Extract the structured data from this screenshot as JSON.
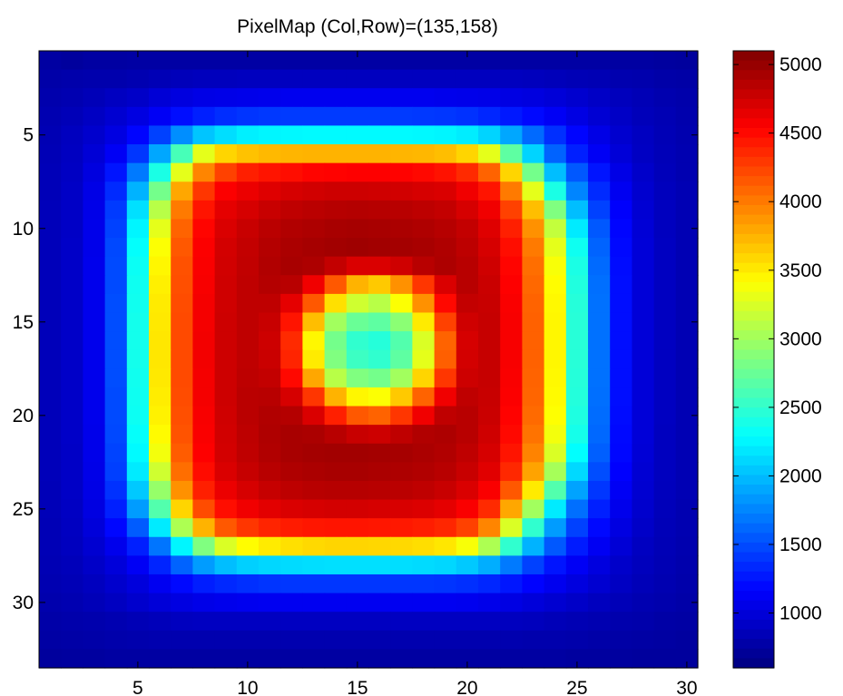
{
  "chart_data": {
    "type": "heatmap",
    "title": "PixelMap (Col,Row)=(135,158)",
    "xlabel": "",
    "ylabel": "",
    "columns": 30,
    "rows": 33,
    "xlim": [
      0.5,
      30.5
    ],
    "ylim": [
      33.5,
      0.5
    ],
    "y_direction": "reverse",
    "xticks": [
      5,
      10,
      15,
      20,
      25,
      30
    ],
    "yticks": [
      5,
      10,
      15,
      20,
      25,
      30
    ],
    "colormap": "jet",
    "colorbar": {
      "location": "right",
      "clim": [
        600,
        5100
      ],
      "ticks": [
        1000,
        1500,
        2000,
        2500,
        3000,
        3500,
        4000,
        4500,
        5000
      ]
    },
    "values_rows_top_to_bottom": [
      [
        750,
        730,
        750,
        750,
        760,
        760,
        760,
        760,
        760,
        760,
        760,
        760,
        760,
        760,
        760,
        760,
        760,
        760,
        760,
        760,
        760,
        760,
        760,
        760,
        760,
        760,
        750,
        750,
        740,
        730
      ],
      [
        780,
        790,
        800,
        800,
        820,
        840,
        860,
        870,
        870,
        880,
        880,
        880,
        880,
        880,
        880,
        880,
        880,
        880,
        880,
        880,
        880,
        880,
        870,
        860,
        840,
        830,
        810,
        800,
        780,
        770
      ],
      [
        800,
        820,
        850,
        890,
        920,
        980,
        1020,
        1050,
        1060,
        1070,
        1080,
        1090,
        1090,
        1090,
        1090,
        1090,
        1090,
        1090,
        1080,
        1070,
        1060,
        1040,
        1020,
        990,
        950,
        910,
        870,
        840,
        810,
        790
      ],
      [
        820,
        850,
        900,
        960,
        1030,
        1120,
        1220,
        1300,
        1360,
        1390,
        1410,
        1420,
        1420,
        1420,
        1420,
        1420,
        1420,
        1410,
        1400,
        1380,
        1330,
        1270,
        1200,
        1120,
        1040,
        970,
        910,
        860,
        830,
        800
      ],
      [
        830,
        880,
        940,
        1030,
        1180,
        1450,
        1790,
        2030,
        2140,
        2220,
        2250,
        2260,
        2270,
        2270,
        2270,
        2270,
        2270,
        2260,
        2250,
        2210,
        2100,
        1900,
        1630,
        1370,
        1180,
        1050,
        950,
        890,
        840,
        810
      ],
      [
        840,
        890,
        980,
        1120,
        1400,
        1900,
        2600,
        3300,
        3600,
        3680,
        3720,
        3740,
        3750,
        3750,
        3750,
        3750,
        3740,
        3730,
        3700,
        3600,
        3300,
        2700,
        2100,
        1600,
        1300,
        1120,
        990,
        900,
        850,
        820
      ],
      [
        850,
        900,
        1020,
        1250,
        1700,
        2400,
        3300,
        3950,
        4250,
        4400,
        4450,
        4480,
        4520,
        4530,
        4540,
        4540,
        4530,
        4500,
        4460,
        4350,
        4100,
        3600,
        2800,
        2000,
        1550,
        1250,
        1050,
        930,
        860,
        820
      ],
      [
        850,
        910,
        1050,
        1350,
        1950,
        2800,
        3800,
        4300,
        4550,
        4620,
        4680,
        4720,
        4740,
        4760,
        4760,
        4750,
        4740,
        4720,
        4700,
        4600,
        4450,
        4000,
        3300,
        2400,
        1750,
        1350,
        1100,
        950,
        870,
        830
      ],
      [
        860,
        910,
        1060,
        1420,
        2150,
        3100,
        4000,
        4450,
        4650,
        4720,
        4780,
        4820,
        4840,
        4860,
        4870,
        4860,
        4850,
        4830,
        4800,
        4720,
        4600,
        4250,
        3700,
        2850,
        2000,
        1450,
        1150,
        970,
        880,
        830
      ],
      [
        860,
        910,
        1070,
        1450,
        2250,
        3300,
        4100,
        4520,
        4700,
        4780,
        4840,
        4880,
        4900,
        4920,
        4930,
        4920,
        4910,
        4890,
        4860,
        4800,
        4680,
        4400,
        3900,
        3150,
        2200,
        1550,
        1180,
        980,
        880,
        830
      ],
      [
        860,
        920,
        1070,
        1480,
        2300,
        3400,
        4150,
        4550,
        4730,
        4800,
        4870,
        4910,
        4930,
        4950,
        4960,
        4950,
        4940,
        4920,
        4890,
        4830,
        4720,
        4480,
        4000,
        3300,
        2350,
        1600,
        1200,
        990,
        890,
        830
      ],
      [
        860,
        920,
        1080,
        1490,
        2330,
        3450,
        4180,
        4560,
        4740,
        4810,
        4880,
        4920,
        4900,
        4800,
        4700,
        4700,
        4750,
        4850,
        4900,
        4850,
        4750,
        4520,
        4050,
        3380,
        2400,
        1630,
        1210,
        990,
        890,
        830
      ],
      [
        860,
        920,
        1080,
        1490,
        2350,
        3480,
        4190,
        4570,
        4750,
        4820,
        4870,
        4850,
        4600,
        4150,
        3750,
        3650,
        3900,
        4300,
        4700,
        4850,
        4770,
        4540,
        4080,
        3420,
        2430,
        1650,
        1220,
        990,
        890,
        830
      ],
      [
        860,
        920,
        1080,
        1500,
        2360,
        3500,
        4200,
        4580,
        4750,
        4820,
        4820,
        4650,
        4150,
        3550,
        3200,
        3100,
        3400,
        3900,
        4500,
        4800,
        4780,
        4560,
        4100,
        3440,
        2450,
        1660,
        1220,
        990,
        890,
        830
      ],
      [
        860,
        920,
        1080,
        1500,
        2370,
        3510,
        4210,
        4580,
        4760,
        4820,
        4780,
        4450,
        3700,
        3000,
        2750,
        2700,
        2900,
        3500,
        4250,
        4750,
        4790,
        4570,
        4110,
        3450,
        2460,
        1660,
        1220,
        990,
        890,
        830
      ],
      [
        860,
        920,
        1080,
        1500,
        2370,
        3520,
        4210,
        4590,
        4760,
        4820,
        4760,
        4350,
        3450,
        2800,
        2500,
        2450,
        2650,
        3250,
        4100,
        4720,
        4790,
        4570,
        4110,
        3450,
        2460,
        1660,
        1220,
        990,
        890,
        830
      ],
      [
        860,
        920,
        1080,
        1500,
        2370,
        3520,
        4210,
        4590,
        4760,
        4820,
        4770,
        4380,
        3500,
        2850,
        2550,
        2500,
        2700,
        3300,
        4120,
        4730,
        4790,
        4570,
        4110,
        3450,
        2460,
        1660,
        1220,
        990,
        890,
        830
      ],
      [
        860,
        920,
        1080,
        1500,
        2360,
        3510,
        4210,
        4580,
        4760,
        4830,
        4800,
        4500,
        3800,
        3100,
        2850,
        2800,
        3000,
        3600,
        4300,
        4760,
        4790,
        4560,
        4100,
        3440,
        2450,
        1660,
        1220,
        990,
        890,
        830
      ],
      [
        860,
        920,
        1080,
        1490,
        2350,
        3490,
        4200,
        4580,
        4760,
        4840,
        4850,
        4720,
        4300,
        3750,
        3450,
        3400,
        3650,
        4100,
        4600,
        4820,
        4780,
        4550,
        4090,
        3430,
        2440,
        1650,
        1220,
        990,
        890,
        830
      ],
      [
        860,
        920,
        1080,
        1490,
        2340,
        3470,
        4190,
        4570,
        4750,
        4840,
        4880,
        4870,
        4700,
        4400,
        4150,
        4100,
        4300,
        4600,
        4820,
        4850,
        4770,
        4530,
        4070,
        3410,
        2420,
        1640,
        1210,
        990,
        890,
        830
      ],
      [
        860,
        920,
        1070,
        1480,
        2310,
        3430,
        4170,
        4560,
        4740,
        4830,
        4890,
        4920,
        4910,
        4850,
        4780,
        4760,
        4820,
        4880,
        4900,
        4850,
        4750,
        4500,
        4030,
        3360,
        2380,
        1620,
        1200,
        990,
        880,
        830
      ],
      [
        860,
        910,
        1070,
        1460,
        2270,
        3360,
        4130,
        4540,
        4730,
        4820,
        4880,
        4920,
        4940,
        4950,
        4950,
        4940,
        4930,
        4910,
        4880,
        4820,
        4720,
        4450,
        3960,
        3250,
        2290,
        1580,
        1190,
        980,
        880,
        830
      ],
      [
        860,
        910,
        1060,
        1440,
        2200,
        3200,
        4050,
        4490,
        4700,
        4790,
        4850,
        4890,
        4910,
        4920,
        4920,
        4910,
        4900,
        4880,
        4850,
        4780,
        4670,
        4360,
        3820,
        3020,
        2120,
        1500,
        1160,
        970,
        880,
        830
      ],
      [
        850,
        910,
        1050,
        1380,
        2050,
        2950,
        3900,
        4400,
        4620,
        4720,
        4790,
        4830,
        4850,
        4860,
        4860,
        4850,
        4840,
        4820,
        4780,
        4700,
        4560,
        4150,
        3500,
        2650,
        1880,
        1400,
        1120,
        960,
        870,
        830
      ],
      [
        850,
        900,
        1030,
        1300,
        1850,
        2650,
        3600,
        4200,
        4480,
        4600,
        4660,
        4700,
        4720,
        4730,
        4730,
        4720,
        4710,
        4690,
        4650,
        4560,
        4350,
        3800,
        3000,
        2200,
        1650,
        1300,
        1080,
        940,
        860,
        820
      ],
      [
        840,
        890,
        1000,
        1190,
        1570,
        2200,
        3050,
        3750,
        4150,
        4300,
        4380,
        4420,
        4440,
        4450,
        4450,
        4440,
        4430,
        4410,
        4370,
        4250,
        3950,
        3250,
        2500,
        1850,
        1450,
        1200,
        1030,
        920,
        850,
        820
      ],
      [
        840,
        880,
        960,
        1080,
        1300,
        1680,
        2250,
        2850,
        3250,
        3420,
        3500,
        3550,
        3580,
        3600,
        3600,
        3590,
        3580,
        3560,
        3520,
        3380,
        3050,
        2500,
        1950,
        1550,
        1280,
        1110,
        980,
        890,
        840,
        810
      ],
      [
        830,
        860,
        920,
        1000,
        1120,
        1320,
        1600,
        1850,
        2000,
        2080,
        2110,
        2130,
        2140,
        2150,
        2150,
        2150,
        2140,
        2130,
        2110,
        2050,
        1930,
        1700,
        1450,
        1250,
        1120,
        1020,
        930,
        870,
        830,
        800
      ],
      [
        820,
        840,
        880,
        940,
        1010,
        1100,
        1200,
        1290,
        1340,
        1370,
        1390,
        1400,
        1400,
        1400,
        1400,
        1400,
        1400,
        1400,
        1390,
        1370,
        1330,
        1260,
        1170,
        1090,
        1020,
        960,
        900,
        850,
        820,
        790
      ],
      [
        800,
        820,
        850,
        890,
        940,
        990,
        1030,
        1060,
        1080,
        1090,
        1100,
        1100,
        1100,
        1100,
        1100,
        1100,
        1100,
        1100,
        1100,
        1090,
        1070,
        1040,
        1000,
        960,
        920,
        880,
        850,
        820,
        800,
        780
      ],
      [
        780,
        790,
        800,
        820,
        840,
        860,
        880,
        890,
        890,
        890,
        890,
        890,
        890,
        890,
        890,
        890,
        890,
        890,
        890,
        890,
        890,
        880,
        870,
        850,
        830,
        820,
        800,
        790,
        770,
        760
      ],
      [
        760,
        770,
        780,
        790,
        800,
        810,
        810,
        810,
        810,
        810,
        810,
        810,
        810,
        810,
        810,
        810,
        810,
        810,
        810,
        810,
        810,
        810,
        800,
        800,
        790,
        780,
        770,
        760,
        750,
        740
      ],
      [
        730,
        740,
        740,
        750,
        750,
        750,
        750,
        750,
        750,
        750,
        750,
        750,
        750,
        750,
        750,
        750,
        750,
        750,
        750,
        750,
        750,
        750,
        750,
        750,
        740,
        740,
        740,
        730,
        730,
        730
      ]
    ]
  }
}
